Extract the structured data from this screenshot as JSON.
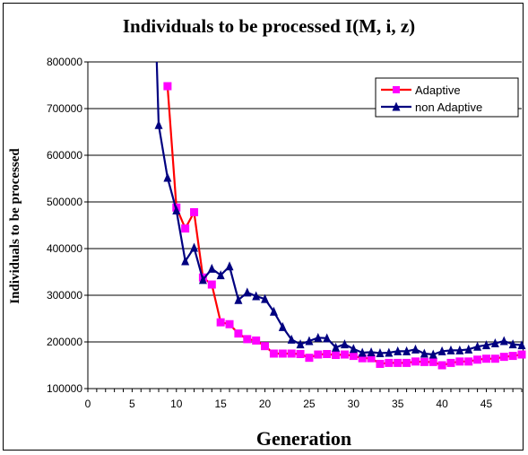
{
  "chart_data": {
    "type": "line",
    "title": "Individuals to be processed I(M, i, z)",
    "xlabel": "Generation",
    "ylabel": "Individuals to be processed",
    "xlim": [
      0,
      49
    ],
    "ylim": [
      100000,
      800000
    ],
    "x_ticks": [
      "0",
      "5",
      "10",
      "15",
      "20",
      "25",
      "30",
      "35",
      "40",
      "45"
    ],
    "y_ticks": [
      "100000",
      "200000",
      "300000",
      "400000",
      "500000",
      "600000",
      "700000",
      "800000"
    ],
    "grid": "horizontal",
    "legend_position": "top-right",
    "series": [
      {
        "name": "Adaptive",
        "color": "#ff0000",
        "marker": "square",
        "marker_color": "#ff00ff",
        "x": [
          9,
          10,
          11,
          12,
          13,
          14,
          15,
          16,
          17,
          18,
          19,
          20,
          21,
          22,
          23,
          24,
          25,
          26,
          27,
          28,
          29,
          30,
          31,
          32,
          33,
          34,
          35,
          36,
          37,
          38,
          39,
          40,
          41,
          42,
          43,
          44,
          45,
          46,
          47,
          48,
          49
        ],
        "values": [
          748000,
          488000,
          443000,
          478000,
          338000,
          323000,
          242000,
          238000,
          218000,
          206000,
          203000,
          191000,
          175000,
          175000,
          175000,
          174000,
          166000,
          173000,
          174000,
          172000,
          173000,
          170000,
          165000,
          165000,
          153000,
          155000,
          155000,
          155000,
          158000,
          157000,
          157000,
          150000,
          155000,
          158000,
          158000,
          162000,
          164000,
          164000,
          168000,
          170000,
          173000
        ]
      },
      {
        "name": "non Adaptive",
        "color": "#000080",
        "marker": "triangle",
        "marker_color": "#000080",
        "x": [
          8,
          9,
          10,
          11,
          12,
          13,
          14,
          15,
          16,
          17,
          18,
          19,
          20,
          21,
          22,
          23,
          24,
          25,
          26,
          27,
          28,
          29,
          30,
          31,
          32,
          33,
          34,
          35,
          36,
          37,
          38,
          39,
          40,
          41,
          42,
          43,
          44,
          45,
          46,
          47,
          48,
          49
        ],
        "values": [
          665000,
          552000,
          482000,
          373000,
          402000,
          333000,
          357000,
          343000,
          362000,
          290000,
          306000,
          298000,
          292000,
          265000,
          232000,
          205000,
          195000,
          202000,
          209000,
          208000,
          188000,
          195000,
          185000,
          177000,
          178000,
          176000,
          177000,
          180000,
          180000,
          184000,
          175000,
          173000,
          180000,
          182000,
          182000,
          184000,
          190000,
          193000,
          197000,
          202000,
          195000,
          193000
        ]
      }
    ]
  }
}
